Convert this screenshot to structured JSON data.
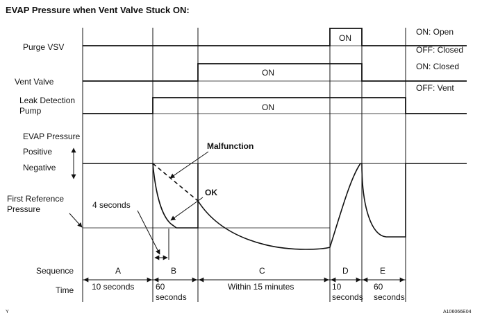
{
  "title": "EVAP Pressure when Vent Valve Stuck ON:",
  "rows": {
    "purge_vsv": "Purge VSV",
    "vent_valve": "Vent Valve",
    "leak_pump_1": "Leak Detection",
    "leak_pump_2": "Pump",
    "evap_pressure": "EVAP Pressure",
    "positive": "Positive",
    "negative": "Negative",
    "first_ref_1": "First Reference",
    "first_ref_2": "Pressure",
    "sequence": "Sequence",
    "time": "Time"
  },
  "legend": {
    "purge_on": "ON: Open",
    "purge_off": "OFF: Closed",
    "vent_on": "ON: Closed",
    "vent_off": "OFF: Vent"
  },
  "signal_labels": {
    "purge_on": "ON",
    "vent_on": "ON",
    "pump_on": "ON"
  },
  "annotations": {
    "malfunction": "Malfunction",
    "ok": "OK",
    "four_seconds": "4 seconds"
  },
  "sequence": [
    "A",
    "B",
    "C",
    "D",
    "E"
  ],
  "times": {
    "a": "10 seconds",
    "b_1": "60",
    "b_2": "seconds",
    "c": "Within 15 minutes",
    "d_1": "10",
    "d_2": "seconds",
    "e_1": "60",
    "e_2": "seconds"
  },
  "corner_left": "Y",
  "figure_id": "A106066E04"
}
